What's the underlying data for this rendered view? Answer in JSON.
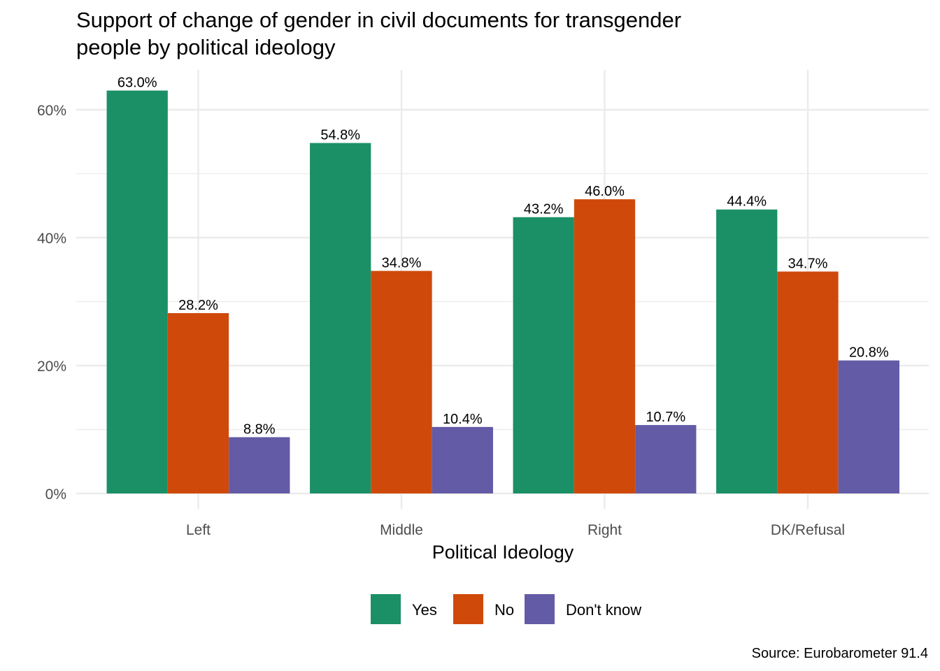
{
  "chart_data": {
    "type": "bar",
    "title_lines": [
      "Support of change of gender in civil documents for transgender",
      "people by political ideology"
    ],
    "xlabel": "Political Ideology",
    "ylabel": "",
    "categories": [
      "Left",
      "Middle",
      "Right",
      "DK/Refusal"
    ],
    "series": [
      {
        "name": "Yes",
        "color": "#1b9066",
        "values": [
          63.0,
          54.8,
          43.2,
          44.4
        ],
        "labels": [
          "63.0%",
          "54.8%",
          "43.2%",
          "44.4%"
        ]
      },
      {
        "name": "No",
        "color": "#cf4a0a",
        "values": [
          28.2,
          34.8,
          46.0,
          34.7
        ],
        "labels": [
          "28.2%",
          "34.8%",
          "46.0%",
          "34.7%"
        ]
      },
      {
        "name": "Don't know",
        "color": "#635ba6",
        "values": [
          8.8,
          10.4,
          10.7,
          20.8
        ],
        "labels": [
          "8.8%",
          "10.4%",
          "10.7%",
          "20.8%"
        ]
      }
    ],
    "yticks": [
      0,
      20,
      40,
      60
    ],
    "ytick_labels": [
      "0%",
      "20%",
      "40%",
      "60%"
    ],
    "ylim": [
      0,
      65.5
    ],
    "grid": true,
    "legend_position": "bottom",
    "caption": "Source: Eurobarometer 91.4"
  }
}
